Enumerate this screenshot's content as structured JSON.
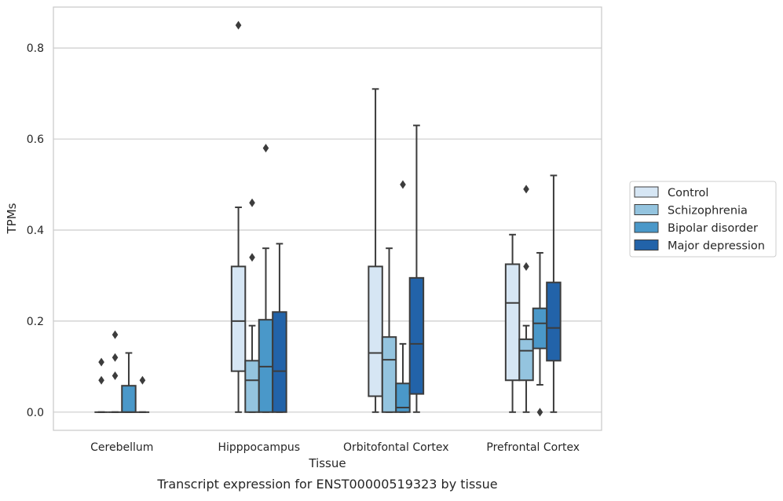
{
  "caption": "Transcript expression for ENST00000519323 by tissue",
  "colors": {
    "series": [
      "#d6e6f4",
      "#94c4df",
      "#4a98c9",
      "#2263a9"
    ],
    "edge": "#3c3c3c",
    "grid": "#cccccc",
    "frame": "#cccccc"
  },
  "chart_data": {
    "type": "boxplot",
    "title": "",
    "xlabel": "Tissue",
    "ylabel": "TPMs",
    "ylim": [
      -0.04,
      0.89
    ],
    "yticks": [
      0.0,
      0.2,
      0.4,
      0.6,
      0.8
    ],
    "ytick_labels": [
      "0.0",
      "0.2",
      "0.4",
      "0.6",
      "0.8"
    ],
    "grid": "horizontal",
    "legend_position": "right-outside",
    "categories": [
      "Cerebellum",
      "Hipppocampus",
      "Orbitofontal Cortex",
      "Prefrontal Cortex"
    ],
    "series": [
      {
        "name": "Control",
        "boxes": [
          {
            "whislo": 0.0,
            "q1": 0.0,
            "med": 0.0,
            "q3": 0.0,
            "whishi": 0.0,
            "fliers": [
              0.07,
              0.11
            ]
          },
          {
            "whislo": 0.0,
            "q1": 0.09,
            "med": 0.2,
            "q3": 0.32,
            "whishi": 0.45,
            "fliers": [
              0.85
            ]
          },
          {
            "whislo": 0.0,
            "q1": 0.035,
            "med": 0.13,
            "q3": 0.32,
            "whishi": 0.71,
            "fliers": []
          },
          {
            "whislo": 0.0,
            "q1": 0.07,
            "med": 0.24,
            "q3": 0.325,
            "whishi": 0.39,
            "fliers": []
          }
        ]
      },
      {
        "name": "Schizophrenia",
        "boxes": [
          {
            "whislo": 0.0,
            "q1": 0.0,
            "med": 0.0,
            "q3": 0.0,
            "whishi": 0.0,
            "fliers": [
              0.08,
              0.12,
              0.17
            ]
          },
          {
            "whislo": 0.0,
            "q1": 0.0,
            "med": 0.07,
            "q3": 0.113,
            "whishi": 0.19,
            "fliers": [
              0.34,
              0.46
            ]
          },
          {
            "whislo": 0.0,
            "q1": 0.0,
            "med": 0.115,
            "q3": 0.165,
            "whishi": 0.36,
            "fliers": []
          },
          {
            "whislo": 0.0,
            "q1": 0.07,
            "med": 0.135,
            "q3": 0.16,
            "whishi": 0.19,
            "fliers": [
              0.32,
              0.49
            ]
          }
        ]
      },
      {
        "name": "Bipolar disorder",
        "boxes": [
          {
            "whislo": 0.0,
            "q1": 0.0,
            "med": 0.0,
            "q3": 0.058,
            "whishi": 0.13,
            "fliers": []
          },
          {
            "whislo": 0.0,
            "q1": 0.0,
            "med": 0.1,
            "q3": 0.203,
            "whishi": 0.36,
            "fliers": [
              0.58
            ]
          },
          {
            "whislo": 0.0,
            "q1": 0.0,
            "med": 0.01,
            "q3": 0.063,
            "whishi": 0.15,
            "fliers": [
              0.5
            ]
          },
          {
            "whislo": 0.06,
            "q1": 0.14,
            "med": 0.195,
            "q3": 0.228,
            "whishi": 0.35,
            "fliers": [
              0.0
            ]
          }
        ]
      },
      {
        "name": "Major depression",
        "boxes": [
          {
            "whislo": 0.0,
            "q1": 0.0,
            "med": 0.0,
            "q3": 0.0,
            "whishi": 0.0,
            "fliers": [
              0.07
            ]
          },
          {
            "whislo": 0.0,
            "q1": 0.0,
            "med": 0.09,
            "q3": 0.22,
            "whishi": 0.37,
            "fliers": []
          },
          {
            "whislo": 0.0,
            "q1": 0.04,
            "med": 0.15,
            "q3": 0.295,
            "whishi": 0.63,
            "fliers": []
          },
          {
            "whislo": 0.0,
            "q1": 0.113,
            "med": 0.185,
            "q3": 0.285,
            "whishi": 0.52,
            "fliers": []
          }
        ]
      }
    ]
  }
}
